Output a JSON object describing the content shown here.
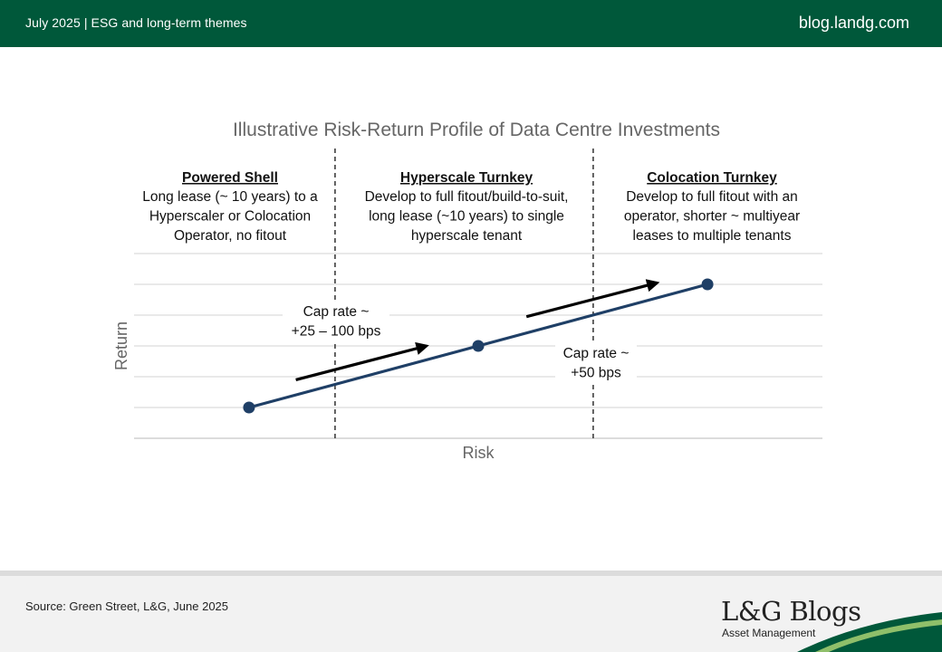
{
  "header": {
    "date_topic": "July 2025 |  ESG and long-term themes",
    "site": "blog.landg.com"
  },
  "footer": {
    "source": "Source: Green Street, L&G, June 2025",
    "brand": "L&G Blogs",
    "brand_sub": "Asset Management"
  },
  "colors": {
    "brand_green": "#00583a",
    "line": "#1f3f66",
    "arrow": "#000000"
  },
  "chart_data": {
    "type": "line",
    "title": "Illustrative Risk-Return Profile of Data Centre Investments",
    "xlabel": "Risk",
    "ylabel": "Return",
    "xlim": [
      0,
      10
    ],
    "ylim": [
      0,
      6
    ],
    "grid": true,
    "series": [
      {
        "name": "Data centre investments",
        "x": [
          1.67,
          5.0,
          8.33
        ],
        "y": [
          1,
          3,
          5
        ]
      }
    ],
    "segments": [
      {
        "heading": "Powered Shell",
        "lines": [
          "Long lease (~ 10 years) to a",
          "Hyperscaler or Colocation",
          "Operator, no fitout"
        ]
      },
      {
        "heading": "Hyperscale Turnkey",
        "lines": [
          "Develop to full fitout/build-to-suit,",
          "long lease (~10 years) to single",
          "hyperscale tenant"
        ]
      },
      {
        "heading": "Colocation Turnkey",
        "lines": [
          "Develop to full fitout with an",
          "operator, shorter ~ multiyear",
          "leases to multiple tenants"
        ]
      }
    ],
    "dividers_x": [
      2.92,
      6.67
    ],
    "annotations": [
      {
        "label": "Cap rate ~",
        "sub": "+25 – 100 bps",
        "arrow_from": [
          2.35,
          1.9
        ],
        "arrow_to": [
          4.25,
          3.0
        ]
      },
      {
        "label": "Cap rate ~",
        "sub": "+50 bps",
        "arrow_from": [
          5.7,
          3.95
        ],
        "arrow_to": [
          7.6,
          5.05
        ]
      }
    ]
  }
}
